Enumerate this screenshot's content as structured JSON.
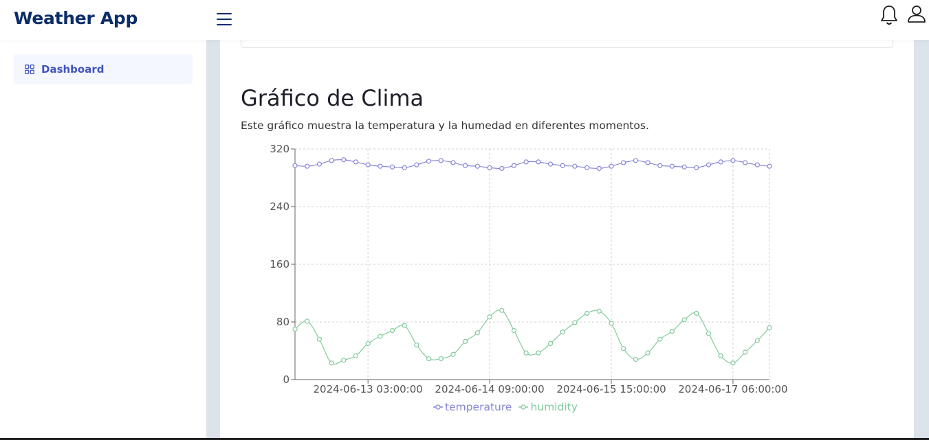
{
  "app": {
    "title": "Weather App"
  },
  "sidebar": {
    "items": [
      {
        "label": "Dashboard",
        "icon": "grid-icon",
        "active": true
      }
    ]
  },
  "header": {
    "icons": [
      "menu-icon",
      "bell-icon",
      "user-icon"
    ]
  },
  "main": {
    "title": "Gráfico de Clima",
    "description": "Este gráfico muestra la temperatura y la humedad en diferentes momentos."
  },
  "colors": {
    "brand": "#0c2d6b",
    "accent": "#4154c0",
    "temperature": "#8884d8",
    "humidity": "#82ca9d"
  },
  "chart_data": {
    "type": "line",
    "y_ticks": [
      "0",
      "80",
      "160",
      "240",
      "320"
    ],
    "ylim": [
      0,
      320
    ],
    "x_tick_labels": [
      "2024-06-13 03:00:00",
      "2024-06-14 09:00:00",
      "2024-06-15 15:00:00",
      "2024-06-17 06:00:00"
    ],
    "x_tick_index": [
      6,
      16,
      26,
      36
    ],
    "grid": true,
    "legend_position": "bottom",
    "series": [
      {
        "name": "temperature",
        "color": "#8884d8",
        "values": [
          297,
          296,
          299,
          304,
          305,
          302,
          298,
          296,
          295,
          294,
          298,
          303,
          304,
          301,
          297,
          296,
          294,
          293,
          297,
          302,
          302,
          299,
          297,
          296,
          294,
          293,
          296,
          301,
          304,
          301,
          297,
          296,
          295,
          294,
          298,
          302,
          304,
          301,
          298,
          296
        ]
      },
      {
        "name": "humidity",
        "color": "#82ca9d",
        "values": [
          70,
          81,
          56,
          23,
          27,
          33,
          50,
          60,
          68,
          75,
          48,
          29,
          29,
          35,
          53,
          65,
          87,
          96,
          68,
          37,
          37,
          50,
          66,
          79,
          92,
          95,
          78,
          43,
          28,
          37,
          56,
          67,
          83,
          92,
          64,
          33,
          23,
          38,
          54,
          72
        ]
      }
    ]
  }
}
